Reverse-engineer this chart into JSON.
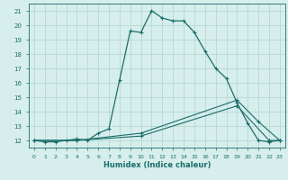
{
  "xlabel": "Humidex (Indice chaleur)",
  "background_color": "#d6eeec",
  "grid_color": "#b8d8d5",
  "line_color": "#1a6e6a",
  "xlim": [
    -0.5,
    23.5
  ],
  "ylim": [
    11.5,
    21.5
  ],
  "yticks": [
    12,
    13,
    14,
    15,
    16,
    17,
    18,
    19,
    20,
    21
  ],
  "xticks": [
    0,
    1,
    2,
    3,
    4,
    5,
    6,
    7,
    8,
    9,
    10,
    11,
    12,
    13,
    14,
    15,
    16,
    17,
    18,
    19,
    20,
    21,
    22,
    23
  ],
  "series1_x": [
    0,
    1,
    2,
    3,
    4,
    5,
    6,
    7,
    8,
    9,
    10,
    11,
    12,
    13,
    14,
    15,
    16,
    17,
    18,
    19,
    20,
    21,
    22,
    23
  ],
  "series1_y": [
    12.0,
    11.9,
    11.9,
    12.0,
    12.1,
    12.0,
    12.5,
    12.8,
    16.2,
    19.6,
    19.5,
    21.0,
    20.5,
    20.3,
    20.3,
    19.5,
    18.2,
    17.0,
    16.3,
    14.6,
    13.2,
    12.0,
    11.9,
    12.0
  ],
  "series2_x": [
    0,
    4,
    10,
    19,
    22,
    23
  ],
  "series2_y": [
    12.0,
    12.0,
    12.3,
    14.4,
    12.0,
    12.0
  ],
  "series3_x": [
    0,
    4,
    10,
    19,
    21,
    23
  ],
  "series3_y": [
    12.0,
    12.0,
    12.5,
    14.8,
    13.3,
    12.0
  ]
}
